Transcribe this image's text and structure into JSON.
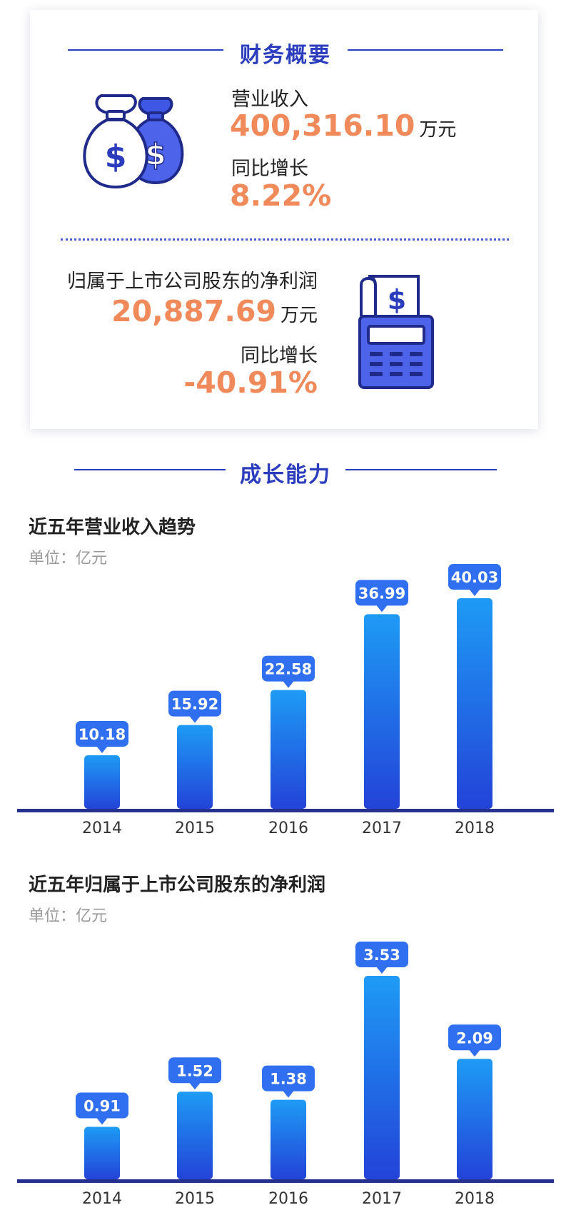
{
  "summary": {
    "heading": "财务概要",
    "revenue_label": "营业收入",
    "revenue_value": "400,316.10",
    "revenue_unit": "万元",
    "revenue_growth_label": "同比增长",
    "revenue_growth_value": "8.22%",
    "profit_label": "归属于上市公司股东的净利润",
    "profit_value": "20,887.69",
    "profit_unit": "万元",
    "profit_growth_label": "同比增长",
    "profit_growth_value": "-40.91%",
    "icons": [
      "money-bags-icon",
      "receipt-calculator-icon"
    ]
  },
  "growth_heading": "成长能力",
  "colors": {
    "brand_blue": "#2b3dbd",
    "accent_orange": "#f08a5b",
    "bar_top": "#1e9bf5",
    "bar_bottom": "#2343d8"
  },
  "chart_data": [
    {
      "type": "bar",
      "title": "近五年营业收入趋势",
      "unit": "单位：亿元",
      "categories": [
        "2014",
        "2015",
        "2016",
        "2017",
        "2018"
      ],
      "values": [
        10.18,
        15.92,
        22.58,
        36.99,
        40.03
      ],
      "value_labels": [
        "10.18",
        "15.92",
        "22.58",
        "36.99",
        "40.03"
      ],
      "ylim": [
        0,
        40.03
      ],
      "grid": false
    },
    {
      "type": "bar",
      "title": "近五年归属于上市公司股东的净利润",
      "unit": "单位：亿元",
      "categories": [
        "2014",
        "2015",
        "2016",
        "2017",
        "2018"
      ],
      "values": [
        0.91,
        1.52,
        1.38,
        3.53,
        2.09
      ],
      "value_labels": [
        "0.91",
        "1.52",
        "1.38",
        "3.53",
        "2.09"
      ],
      "ylim": [
        0,
        3.53
      ],
      "grid": false
    }
  ]
}
